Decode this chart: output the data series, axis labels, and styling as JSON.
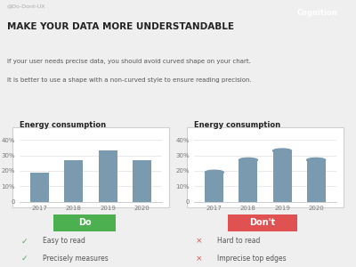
{
  "title": "MAKE YOUR DATA MORE UNDERSTANDABLE",
  "subtitle1": "If your user needs precise data, you should avoid curved shape on your chart.",
  "subtitle2": "It is better to use a shape with a non-curved style to ensure reading precision.",
  "watermark": "@Do-Dont-UX",
  "tag": "Cognition",
  "tag_color": "#e05252",
  "bg_color": "#efefef",
  "panel_bg": "#ffffff",
  "top_bg": "#f7f7f7",
  "bottom_bg": "#e8e8e8",
  "chart_title": "Energy consumption",
  "years": [
    "2017",
    "2018",
    "2019",
    "2020"
  ],
  "values": [
    19,
    27,
    33,
    27
  ],
  "bar_color": "#7a9ab0",
  "yticks": [
    0,
    10,
    20,
    30,
    40
  ],
  "ytick_labels": [
    "0",
    "10%",
    "20%",
    "30%",
    "40%"
  ],
  "do_label": "Do",
  "dont_label": "Don't",
  "do_color": "#4caf50",
  "dont_color": "#e05252",
  "do_checks": [
    "Easy to read",
    "Precisely measures"
  ],
  "dont_checks": [
    "Hard to read",
    "Imprecise top edges"
  ],
  "check_color": "#4caf50",
  "cross_color": "#e05252",
  "divider_color": "#cccccc",
  "title_color": "#222222",
  "subtitle_color": "#555555",
  "watermark_color": "#aaaaaa",
  "grid_color": "#e0e0e0"
}
